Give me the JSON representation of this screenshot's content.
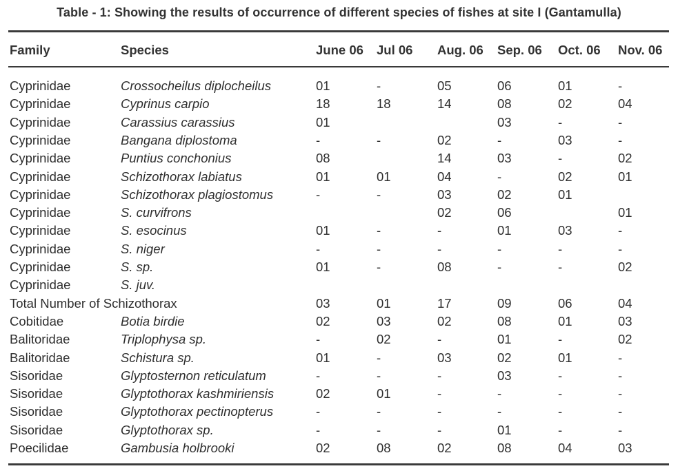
{
  "caption": "Table - 1: Showing the results of occurrence of different species of fishes at site I (Gantamulla)",
  "headers": {
    "family": "Family",
    "species": "Species",
    "months": [
      "June 06",
      "Jul 06",
      "Aug. 06",
      "Sep. 06",
      "Oct. 06",
      "Nov. 06"
    ]
  },
  "rows": [
    {
      "family": "Cyprinidae",
      "species": "Crossocheilus diplocheilus",
      "values": [
        "01",
        "-",
        "05",
        "06",
        "01",
        "-"
      ]
    },
    {
      "family": "Cyprinidae",
      "species": "Cyprinus carpio",
      "values": [
        "18",
        "18",
        "14",
        "08",
        "02",
        "04"
      ]
    },
    {
      "family": "Cyprinidae",
      "species": "Carassius carassius",
      "values": [
        "01",
        "",
        "",
        "03",
        "-",
        "-"
      ]
    },
    {
      "family": "Cyprinidae",
      "species": "Bangana diplostoma",
      "values": [
        "-",
        "-",
        "02",
        "-",
        "03",
        "-"
      ]
    },
    {
      "family": "Cyprinidae",
      "species": "Puntius conchonius",
      "values": [
        "08",
        "",
        "14",
        "03",
        "-",
        "02"
      ]
    },
    {
      "family": "Cyprinidae",
      "species": "Schizothorax labiatus",
      "values": [
        "01",
        "01",
        "04",
        "-",
        "02",
        "01"
      ]
    },
    {
      "family": "Cyprinidae",
      "species": "Schizothorax plagiostomus",
      "values": [
        "-",
        "-",
        "03",
        "02",
        "01",
        ""
      ]
    },
    {
      "family": "Cyprinidae",
      "species": "S. curvifrons",
      "values": [
        "",
        "",
        "02",
        "06",
        "",
        "01"
      ]
    },
    {
      "family": "Cyprinidae",
      "species": "S. esocinus",
      "values": [
        "01",
        "-",
        "-",
        "01",
        "03",
        "-"
      ]
    },
    {
      "family": "Cyprinidae",
      "species": "S. niger",
      "values": [
        "-",
        "-",
        "-",
        "-",
        "-",
        "-"
      ]
    },
    {
      "family": "Cyprinidae",
      "species": "S. sp.",
      "values": [
        "01",
        "-",
        "08",
        "-",
        "-",
        "02"
      ]
    },
    {
      "family": "Cyprinidae",
      "species": "S. juv.",
      "values": [
        "",
        "",
        "",
        "",
        "",
        ""
      ]
    },
    {
      "family": "Total Number of Schizothorax",
      "species": "",
      "values": [
        "03",
        "01",
        "17",
        "09",
        "06",
        "04"
      ]
    },
    {
      "family": "Cobitidae",
      "species": "Botia birdie",
      "values": [
        "02",
        "03",
        "02",
        "08",
        "01",
        "03"
      ]
    },
    {
      "family": "Balitoridae",
      "species": "Triplophysa sp.",
      "values": [
        "-",
        "02",
        "-",
        "01",
        "-",
        "02"
      ]
    },
    {
      "family": "Balitoridae",
      "species": "Schistura sp.",
      "values": [
        "01",
        "-",
        "03",
        "02",
        "01",
        "-"
      ]
    },
    {
      "family": "Sisoridae",
      "species": "Glyptosternon reticulatum",
      "values": [
        "-",
        "-",
        "-",
        "03",
        "-",
        "-"
      ]
    },
    {
      "family": "Sisoridae",
      "species": "Glyptothorax kashmiriensis",
      "values": [
        "02",
        "01",
        "-",
        "-",
        "-",
        "-"
      ]
    },
    {
      "family": "Sisoridae",
      "species": "Glyptothorax pectinopterus",
      "values": [
        "-",
        "-",
        "-",
        "-",
        "-",
        "-"
      ]
    },
    {
      "family": "Sisoridae",
      "species": "Glyptothorax sp.",
      "values": [
        "-",
        "-",
        "-",
        "01",
        "-",
        "-"
      ]
    },
    {
      "family": "Poecilidae",
      "species": "Gambusia holbrooki",
      "values": [
        "02",
        "08",
        "02",
        "08",
        "04",
        "03"
      ]
    }
  ]
}
